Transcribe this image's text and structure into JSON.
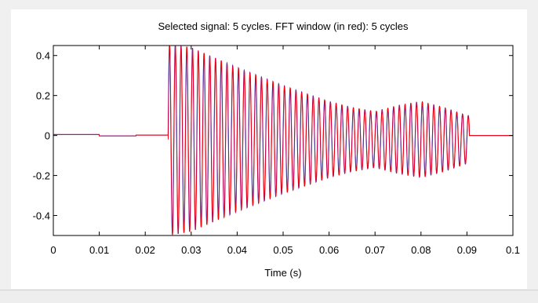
{
  "chart_data": {
    "type": "line",
    "title": "Selected signal: 5 cycles. FFT window (in red): 5 cycles",
    "xlabel": "Time (s)",
    "ylabel": "",
    "xlim": [
      0,
      0.1
    ],
    "ylim": [
      -0.5,
      0.45
    ],
    "xticks": [
      0,
      0.01,
      0.02,
      0.03,
      0.04,
      0.05,
      0.06,
      0.07,
      0.08,
      0.09,
      0.1
    ],
    "xtick_labels": [
      "0",
      "0.01",
      "0.02",
      "0.03",
      "0.04",
      "0.05",
      "0.06",
      "0.07",
      "0.08",
      "0.09",
      "0.1"
    ],
    "yticks": [
      0.4,
      0.2,
      0,
      -0.2,
      -0.4
    ],
    "ytick_labels": [
      "0.4",
      "0.2",
      "0",
      "-0.2",
      "-0.4"
    ],
    "grid": false,
    "legend": "none",
    "series": [
      {
        "color": "#0000ff",
        "frequency_hz": 800,
        "onset": 0.025,
        "end": 0.0905,
        "pre_onset_offset": 0.005,
        "envelope": [
          [
            0.025,
            0.48
          ],
          [
            0.03,
            0.46
          ],
          [
            0.04,
            0.36
          ],
          [
            0.05,
            0.27
          ],
          [
            0.06,
            0.19
          ],
          [
            0.065,
            0.16
          ],
          [
            0.07,
            0.14
          ],
          [
            0.075,
            0.17
          ],
          [
            0.08,
            0.19
          ],
          [
            0.085,
            0.16
          ],
          [
            0.09,
            0.12
          ]
        ]
      },
      {
        "color": "#ff0000",
        "frequency_hz": 800,
        "onset": 0.025,
        "end": 0.0905,
        "pre_onset_offset": 0.005,
        "envelope": [
          [
            0.025,
            0.48
          ],
          [
            0.03,
            0.46
          ],
          [
            0.04,
            0.36
          ],
          [
            0.05,
            0.27
          ],
          [
            0.06,
            0.19
          ],
          [
            0.065,
            0.16
          ],
          [
            0.07,
            0.14
          ],
          [
            0.075,
            0.17
          ],
          [
            0.08,
            0.19
          ],
          [
            0.085,
            0.16
          ],
          [
            0.09,
            0.12
          ]
        ]
      }
    ]
  }
}
